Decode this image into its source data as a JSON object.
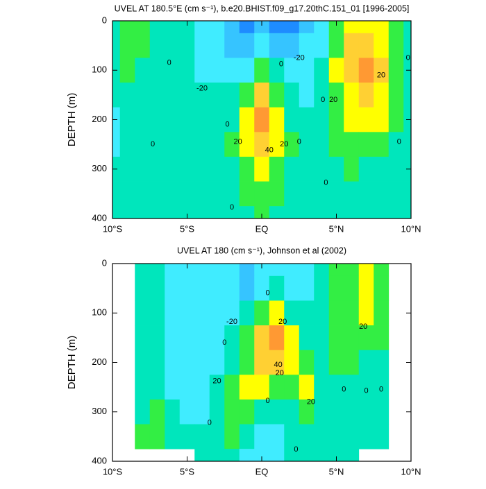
{
  "chart_data": [
    {
      "type": "contour",
      "title": "UVEL AT 180.5°E (cm s⁻¹), b.e20.BHIST.f09_g17.20thC.151_01 [1996-2005]",
      "y_label": "DEPTH (m)",
      "xlim": [
        -10,
        10
      ],
      "ylim": [
        0,
        400
      ],
      "y_inverted": true,
      "xticks": [
        {
          "value": -10,
          "label": "10°S"
        },
        {
          "value": -5,
          "label": "5°S"
        },
        {
          "value": 0,
          "label": "EQ"
        },
        {
          "value": 5,
          "label": "5°N"
        },
        {
          "value": 10,
          "label": "10°N"
        }
      ],
      "yticks": [
        0,
        100,
        200,
        300,
        400
      ],
      "levels": [
        -30,
        -20,
        -10,
        0,
        10,
        20,
        30,
        40,
        50
      ],
      "colors": [
        "#1e8cff",
        "#36c4ff",
        "#40ecff",
        "#00e6bc",
        "#33ee44",
        "#ffff00",
        "#ffd033",
        "#ff9933"
      ],
      "x": [
        -10,
        -9,
        -8,
        -7,
        -6,
        -5,
        -4,
        -3,
        -2,
        -1,
        0,
        1,
        2,
        3,
        4,
        5,
        6,
        7,
        8,
        9,
        10
      ],
      "depth": [
        0,
        50,
        100,
        150,
        200,
        250,
        300,
        350,
        400
      ],
      "z": [
        [
          5,
          12,
          12,
          8,
          4,
          2,
          -2,
          -8,
          -15,
          -22,
          -20,
          -22,
          -25,
          -12,
          -5,
          15,
          25,
          28,
          22,
          12,
          5
        ],
        [
          5,
          13,
          12,
          6,
          3,
          1,
          -2,
          -8,
          -14,
          -18,
          -10,
          -15,
          -18,
          -8,
          -2,
          18,
          30,
          38,
          28,
          15,
          6
        ],
        [
          4,
          10,
          8,
          4,
          2,
          1,
          -1,
          -5,
          -8,
          -5,
          15,
          0,
          -8,
          -5,
          2,
          20,
          30,
          42,
          30,
          16,
          8
        ],
        [
          0,
          6,
          6,
          3,
          3,
          2,
          2,
          0,
          2,
          12,
          35,
          18,
          0,
          -2,
          5,
          18,
          28,
          32,
          26,
          15,
          6
        ],
        [
          -2,
          3,
          4,
          3,
          3,
          4,
          5,
          5,
          8,
          20,
          45,
          28,
          8,
          2,
          6,
          15,
          22,
          24,
          20,
          12,
          5
        ],
        [
          -2,
          2,
          3,
          3,
          3,
          4,
          5,
          5,
          10,
          22,
          38,
          25,
          10,
          3,
          5,
          12,
          15,
          15,
          14,
          8,
          4
        ],
        [
          2,
          3,
          3,
          3,
          3,
          3,
          4,
          5,
          8,
          15,
          22,
          16,
          8,
          3,
          3,
          8,
          10,
          8,
          7,
          5,
          3
        ],
        [
          3,
          3,
          3,
          3,
          3,
          3,
          3,
          3,
          5,
          10,
          14,
          12,
          6,
          3,
          3,
          5,
          7,
          5,
          4,
          3,
          3
        ],
        [
          3,
          3,
          3,
          3,
          3,
          3,
          3,
          3,
          4,
          8,
          10,
          8,
          5,
          3,
          3,
          4,
          5,
          4,
          3,
          3,
          3
        ]
      ],
      "contour_labels": [
        {
          "x": -6.2,
          "y": 85,
          "value": 0
        },
        {
          "x": -4,
          "y": 137,
          "value": -20
        },
        {
          "x": 2.5,
          "y": 75,
          "value": -20
        },
        {
          "x": 1.3,
          "y": 88,
          "value": 0
        },
        {
          "x": -2.3,
          "y": 210,
          "value": 0
        },
        {
          "x": -7.3,
          "y": 250,
          "value": 0
        },
        {
          "x": -1.6,
          "y": 245,
          "value": 20
        },
        {
          "x": 0.5,
          "y": 262,
          "value": 40
        },
        {
          "x": 1.5,
          "y": 250,
          "value": 20
        },
        {
          "x": 2.5,
          "y": 245,
          "value": 0
        },
        {
          "x": 4.1,
          "y": 160,
          "value": 0
        },
        {
          "x": 4.8,
          "y": 160,
          "value": 20
        },
        {
          "x": 8,
          "y": 110,
          "value": 20
        },
        {
          "x": 9.8,
          "y": 75,
          "value": 0
        },
        {
          "x": 9.2,
          "y": 245,
          "value": 0
        },
        {
          "x": 4.3,
          "y": 328,
          "value": 0
        },
        {
          "x": -2,
          "y": 378,
          "value": 0
        }
      ]
    },
    {
      "type": "contour",
      "title": "UVEL AT 180 (cm s⁻¹), Johnson et al (2002)",
      "y_label": "DEPTH (m)",
      "xlim": [
        -10,
        10
      ],
      "ylim": [
        0,
        400
      ],
      "y_inverted": true,
      "xticks": [
        {
          "value": -10,
          "label": "10°S"
        },
        {
          "value": -5,
          "label": "5°S"
        },
        {
          "value": 0,
          "label": "EQ"
        },
        {
          "value": 5,
          "label": "5°N"
        },
        {
          "value": 10,
          "label": "10°N"
        }
      ],
      "yticks": [
        0,
        100,
        200,
        300,
        400
      ],
      "levels": [
        -30,
        -20,
        -10,
        0,
        10,
        20,
        30,
        40,
        50
      ],
      "colors": [
        "#1e8cff",
        "#36c4ff",
        "#40ecff",
        "#00e6bc",
        "#33ee44",
        "#ffff00",
        "#ffd033",
        "#ff9933"
      ],
      "x": [
        -10,
        -9,
        -8,
        -7,
        -6,
        -5,
        -4,
        -3,
        -2,
        -1,
        0,
        1,
        2,
        3,
        4,
        5,
        6,
        7,
        8,
        9,
        10
      ],
      "depth": [
        0,
        50,
        100,
        150,
        200,
        250,
        300,
        350,
        400
      ],
      "z": [
        [
          null,
          null,
          2,
          2,
          -3,
          -5,
          -5,
          -6,
          -8,
          -12,
          -8,
          -3,
          -5,
          -3,
          5,
          12,
          15,
          22,
          18,
          null,
          null
        ],
        [
          null,
          null,
          3,
          3,
          -3,
          -5,
          -6,
          -7,
          -10,
          -15,
          -5,
          0,
          -3,
          -2,
          6,
          15,
          18,
          25,
          18,
          null,
          null
        ],
        [
          null,
          null,
          3,
          2,
          -2,
          -5,
          -6,
          -5,
          -3,
          5,
          18,
          20,
          8,
          2,
          8,
          14,
          18,
          22,
          15,
          null,
          null
        ],
        [
          null,
          null,
          2,
          1,
          -3,
          -5,
          -5,
          -3,
          2,
          15,
          35,
          42,
          22,
          8,
          8,
          12,
          12,
          12,
          10,
          null,
          null
        ],
        [
          null,
          null,
          1,
          0,
          -3,
          -5,
          -4,
          -2,
          5,
          18,
          30,
          32,
          25,
          15,
          8,
          10,
          10,
          8,
          6,
          null,
          null
        ],
        [
          null,
          null,
          2,
          1,
          -2,
          -4,
          -3,
          0,
          10,
          22,
          20,
          10,
          12,
          20,
          8,
          6,
          6,
          4,
          4,
          null,
          null
        ],
        [
          null,
          null,
          8,
          12,
          4,
          -2,
          -2,
          5,
          12,
          12,
          5,
          0,
          5,
          10,
          5,
          3,
          3,
          2,
          2,
          null,
          null
        ],
        [
          null,
          null,
          12,
          12,
          8,
          2,
          2,
          5,
          10,
          5,
          -3,
          -5,
          2,
          5,
          3,
          2,
          2,
          2,
          2,
          null,
          null
        ],
        [
          null,
          null,
          null,
          null,
          null,
          null,
          5,
          8,
          5,
          -5,
          -8,
          -3,
          5,
          5,
          3,
          2,
          2,
          null,
          null,
          null,
          null
        ]
      ],
      "contour_labels": [
        {
          "x": -2,
          "y": 118,
          "value": -20
        },
        {
          "x": 1.4,
          "y": 118,
          "value": 20
        },
        {
          "x": -2.5,
          "y": 160,
          "value": 0
        },
        {
          "x": -3,
          "y": 238,
          "value": 20
        },
        {
          "x": 1.1,
          "y": 205,
          "value": 40
        },
        {
          "x": 1.2,
          "y": 222,
          "value": 20
        },
        {
          "x": 3.3,
          "y": 280,
          "value": 20
        },
        {
          "x": 0.4,
          "y": 60,
          "value": 0
        },
        {
          "x": 0.4,
          "y": 278,
          "value": 0
        },
        {
          "x": -3.5,
          "y": 322,
          "value": 0
        },
        {
          "x": 6.8,
          "y": 128,
          "value": 20
        },
        {
          "x": 5.5,
          "y": 255,
          "value": 0
        },
        {
          "x": 7,
          "y": 258,
          "value": 0
        },
        {
          "x": 8,
          "y": 255,
          "value": 0
        },
        {
          "x": 2.3,
          "y": 376,
          "value": 0
        }
      ]
    }
  ]
}
